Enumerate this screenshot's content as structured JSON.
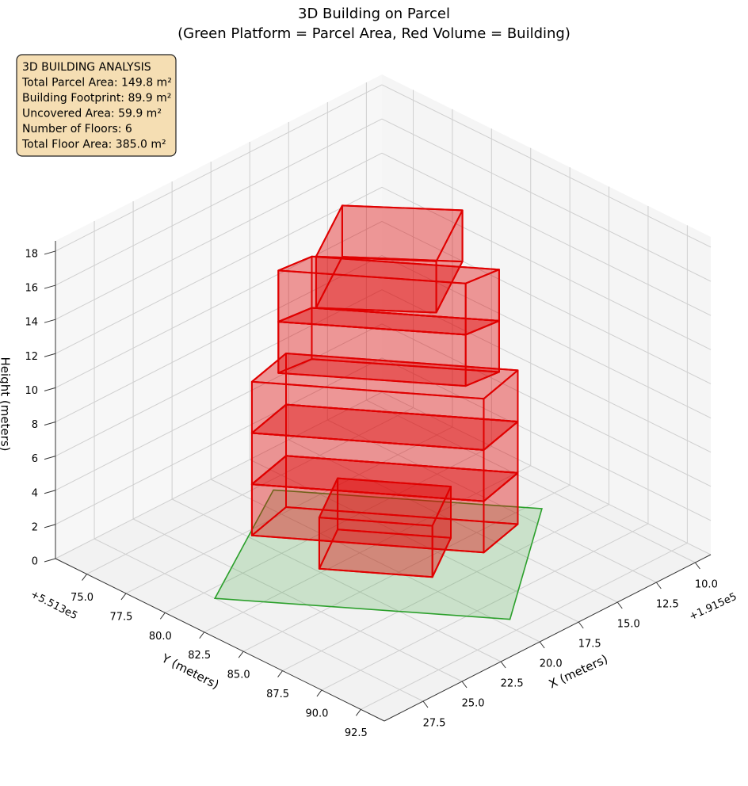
{
  "chart_data": {
    "type": "3d-box",
    "title": [
      "3D Building on Parcel",
      "(Green Platform = Parcel Area, Red Volume = Building)"
    ],
    "info_box": [
      "3D BUILDING ANALYSIS",
      "Total Parcel Area: 149.8 m²",
      "Building Footprint: 89.9 m²",
      "Uncovered Area: 59.9 m²",
      "Number of Floors: 6",
      "Total Floor Area: 385.0 m²"
    ],
    "xlabel": "X (meters)",
    "ylabel": "Y (meters)",
    "zlabel": "Height (meters)",
    "x_offset_label": "+1.915e5",
    "y_offset_label": "+5.513e5",
    "xlim": [
      9,
      30
    ],
    "ylim": [
      73,
      94
    ],
    "zlim": [
      0,
      18.6
    ],
    "xticks": [
      {
        "value": 10,
        "label": "10.0"
      },
      12.5,
      {
        "value": 15,
        "label": "15.0"
      },
      17.5,
      {
        "value": 20,
        "label": "20.0"
      },
      22.5,
      {
        "value": 25,
        "label": "25.0"
      },
      27.5
    ],
    "yticks": [
      {
        "value": 75,
        "label": "75.0"
      },
      77.5,
      {
        "value": 80,
        "label": "80.0"
      },
      82.5,
      {
        "value": 85,
        "label": "85.0"
      },
      87.5,
      {
        "value": 90,
        "label": "90.0"
      },
      92.5
    ],
    "zticks": [
      0,
      2,
      4,
      6,
      8,
      10,
      12,
      14,
      16,
      18
    ],
    "grid": true,
    "parcel_color": "#2ca02c",
    "building_color": "#e00000",
    "parcel": [
      [
        27.5,
        80.7
      ],
      [
        19.5,
        91.6
      ],
      [
        11.4,
        85.6
      ],
      [
        18.7,
        75.7
      ]
    ],
    "boxes": [
      {
        "footprint": [
          [
            22.3,
            77.9
          ],
          [
            16.05,
            86.5
          ],
          [
            13.15,
            85.8
          ],
          [
            19.4,
            77.2
          ]
        ],
        "z": [
          0,
          3
        ]
      },
      {
        "footprint": [
          [
            22.3,
            82.2
          ],
          [
            19.25,
            86.4
          ],
          [
            16.15,
            84.5
          ],
          [
            19.2,
            80.3
          ]
        ],
        "z": [
          0,
          3
        ]
      },
      {
        "footprint": [
          [
            22.3,
            77.9
          ],
          [
            16.05,
            86.5
          ],
          [
            13.15,
            85.8
          ],
          [
            19.4,
            77.2
          ]
        ],
        "z": [
          3,
          6
        ]
      },
      {
        "footprint": [
          [
            22.3,
            77.9
          ],
          [
            16.05,
            86.5
          ],
          [
            13.15,
            85.8
          ],
          [
            19.4,
            77.2
          ]
        ],
        "z": [
          6,
          9
        ]
      },
      {
        "footprint": [
          [
            20.9,
            78.2
          ],
          [
            15.8,
            85.1
          ],
          [
            13.85,
            85.3
          ],
          [
            18.95,
            78.4
          ]
        ],
        "z": [
          9,
          12
        ]
      },
      {
        "footprint": [
          [
            20.9,
            78.2
          ],
          [
            15.8,
            85.1
          ],
          [
            13.85,
            85.3
          ],
          [
            18.95,
            78.4
          ]
        ],
        "z": [
          12,
          15
        ]
      },
      {
        "footprint": [
          [
            22.1,
            81.8
          ],
          [
            18.6,
            86.0
          ],
          [
            14.5,
            83.6
          ],
          [
            18.0,
            79.4
          ]
        ],
        "z": [
          15,
          18
        ]
      }
    ]
  }
}
